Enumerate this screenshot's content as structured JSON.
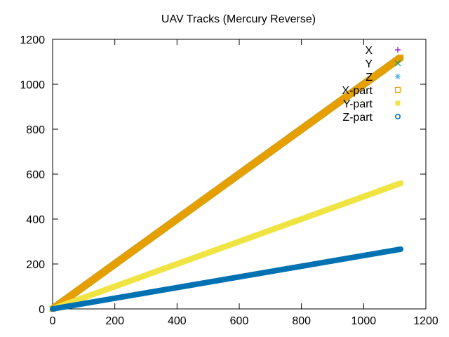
{
  "chart_data": {
    "type": "scatter",
    "title": "UAV Tracks (Mercury Reverse)",
    "xlabel": "",
    "ylabel": "",
    "xlim": [
      0,
      1200
    ],
    "ylim": [
      0,
      1200
    ],
    "x_ticks": [
      0,
      200,
      400,
      600,
      800,
      1000,
      1200
    ],
    "y_ticks": [
      0,
      200,
      400,
      600,
      800,
      1000,
      1200
    ],
    "grid": false,
    "legend_placement": "top-right",
    "series": [
      {
        "name": "X",
        "marker": "plus",
        "color": "#9400d3",
        "x_range": [
          0,
          1120
        ],
        "slope": 1.0
      },
      {
        "name": "Y",
        "marker": "cross",
        "color": "#009e73",
        "x_range": [
          0,
          1120
        ],
        "slope": 1.0
      },
      {
        "name": "Z",
        "marker": "star",
        "color": "#56b4e9",
        "x_range": [
          0,
          1120
        ],
        "slope": 0.5
      },
      {
        "name": "X-part",
        "marker": "open-square",
        "color": "#e69f00",
        "x_range": [
          0,
          1120
        ],
        "slope": 1.0
      },
      {
        "name": "Y-part",
        "marker": "filled-square",
        "color": "#f0e442",
        "x_range": [
          0,
          1120
        ],
        "slope": 0.5
      },
      {
        "name": "Z-part",
        "marker": "open-circle",
        "color": "#0072b2",
        "x_range": [
          0,
          1120
        ],
        "slope": 0.2375
      }
    ]
  }
}
